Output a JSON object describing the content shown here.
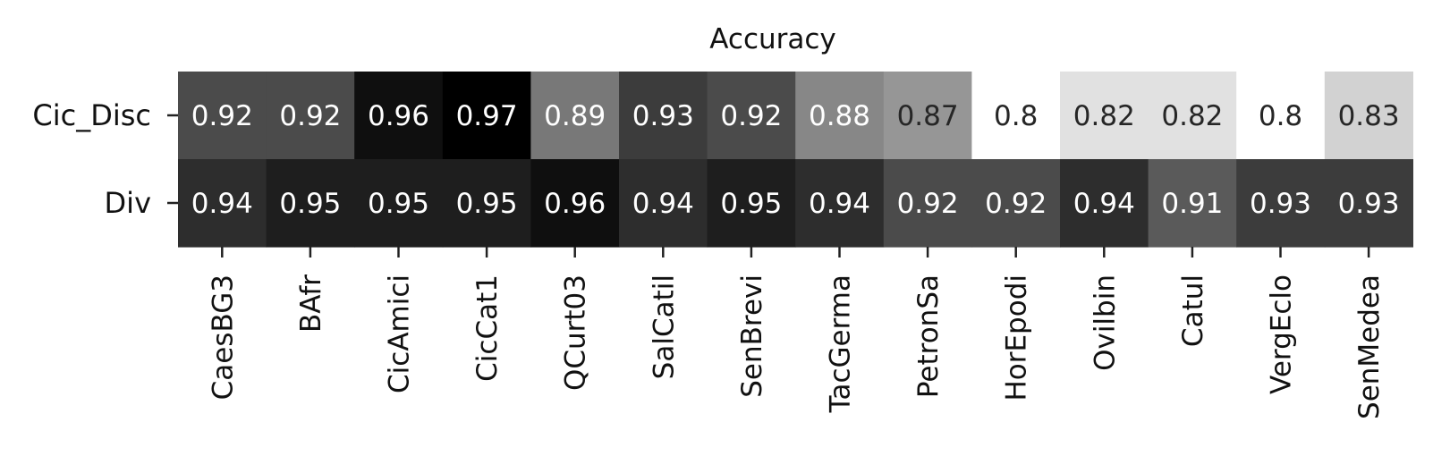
{
  "chart_data": {
    "type": "heatmap",
    "title": "Accuracy",
    "rows": [
      "Cic_Disc",
      "Div"
    ],
    "columns": [
      "CaesBG3",
      "BAfr",
      "CicAmici",
      "CicCat1",
      "QCurt03",
      "SalCatil",
      "SenBrevi",
      "TacGerma",
      "PetronSa",
      "HorEpodi",
      "Ovilbin",
      "Catul",
      "VergEclo",
      "SenMedea"
    ],
    "values": [
      [
        0.92,
        0.92,
        0.96,
        0.97,
        0.89,
        0.93,
        0.92,
        0.88,
        0.87,
        0.8,
        0.82,
        0.82,
        0.8,
        0.83
      ],
      [
        0.94,
        0.95,
        0.95,
        0.95,
        0.96,
        0.94,
        0.95,
        0.94,
        0.92,
        0.92,
        0.94,
        0.91,
        0.93,
        0.93
      ]
    ],
    "colormap": "greys",
    "value_range": [
      0.8,
      0.97
    ],
    "colorbar": false
  }
}
